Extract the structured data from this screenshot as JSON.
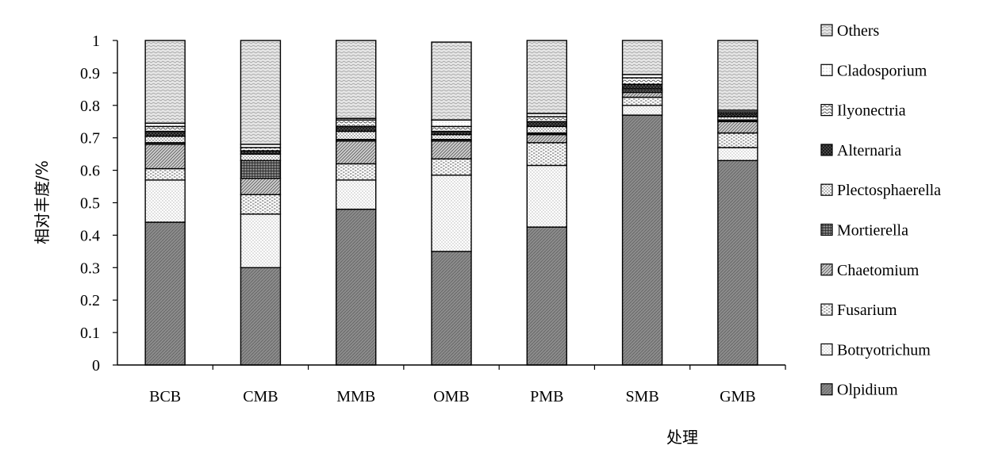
{
  "chart_data": {
    "type": "bar",
    "stacked": true,
    "xlabel": "处理",
    "ylabel": "相对丰度/%",
    "ylim": [
      0,
      1
    ],
    "yticks": [
      "0",
      "0.1",
      "0.2",
      "0.3",
      "0.4",
      "0.5",
      "0.6",
      "0.7",
      "0.8",
      "0.9",
      "1"
    ],
    "grid": false,
    "legend_position": "right",
    "categories": [
      "BCB",
      "CMB",
      "MMB",
      "OMB",
      "PMB",
      "SMB",
      "GMB"
    ],
    "series": [
      {
        "name": "Olpidium",
        "values": [
          0.44,
          0.3,
          0.48,
          0.35,
          0.425,
          0.77,
          0.63
        ]
      },
      {
        "name": "Botryotrichum",
        "values": [
          0.13,
          0.165,
          0.09,
          0.235,
          0.19,
          0.03,
          0.04
        ]
      },
      {
        "name": "Fusarium",
        "values": [
          0.035,
          0.06,
          0.05,
          0.05,
          0.07,
          0.025,
          0.045
        ]
      },
      {
        "name": "Chaetomium",
        "values": [
          0.075,
          0.05,
          0.07,
          0.055,
          0.025,
          0.015,
          0.035
        ]
      },
      {
        "name": "Mortierella",
        "values": [
          0.005,
          0.055,
          0.005,
          0.005,
          0.005,
          0.005,
          0.005
        ]
      },
      {
        "name": "Plectosphaerella",
        "values": [
          0.02,
          0.02,
          0.025,
          0.015,
          0.02,
          0.005,
          0.01
        ]
      },
      {
        "name": "Alternaria",
        "values": [
          0.015,
          0.01,
          0.015,
          0.01,
          0.015,
          0.015,
          0.01
        ]
      },
      {
        "name": "Ilyonectria",
        "values": [
          0.015,
          0.01,
          0.02,
          0.015,
          0.015,
          0.02,
          0.005
        ]
      },
      {
        "name": "Cladosporium",
        "values": [
          0.01,
          0.01,
          0.005,
          0.02,
          0.01,
          0.01,
          0.005
        ]
      },
      {
        "name": "Others",
        "values": [
          0.255,
          0.32,
          0.24,
          0.24,
          0.225,
          0.105,
          0.215
        ]
      }
    ]
  }
}
